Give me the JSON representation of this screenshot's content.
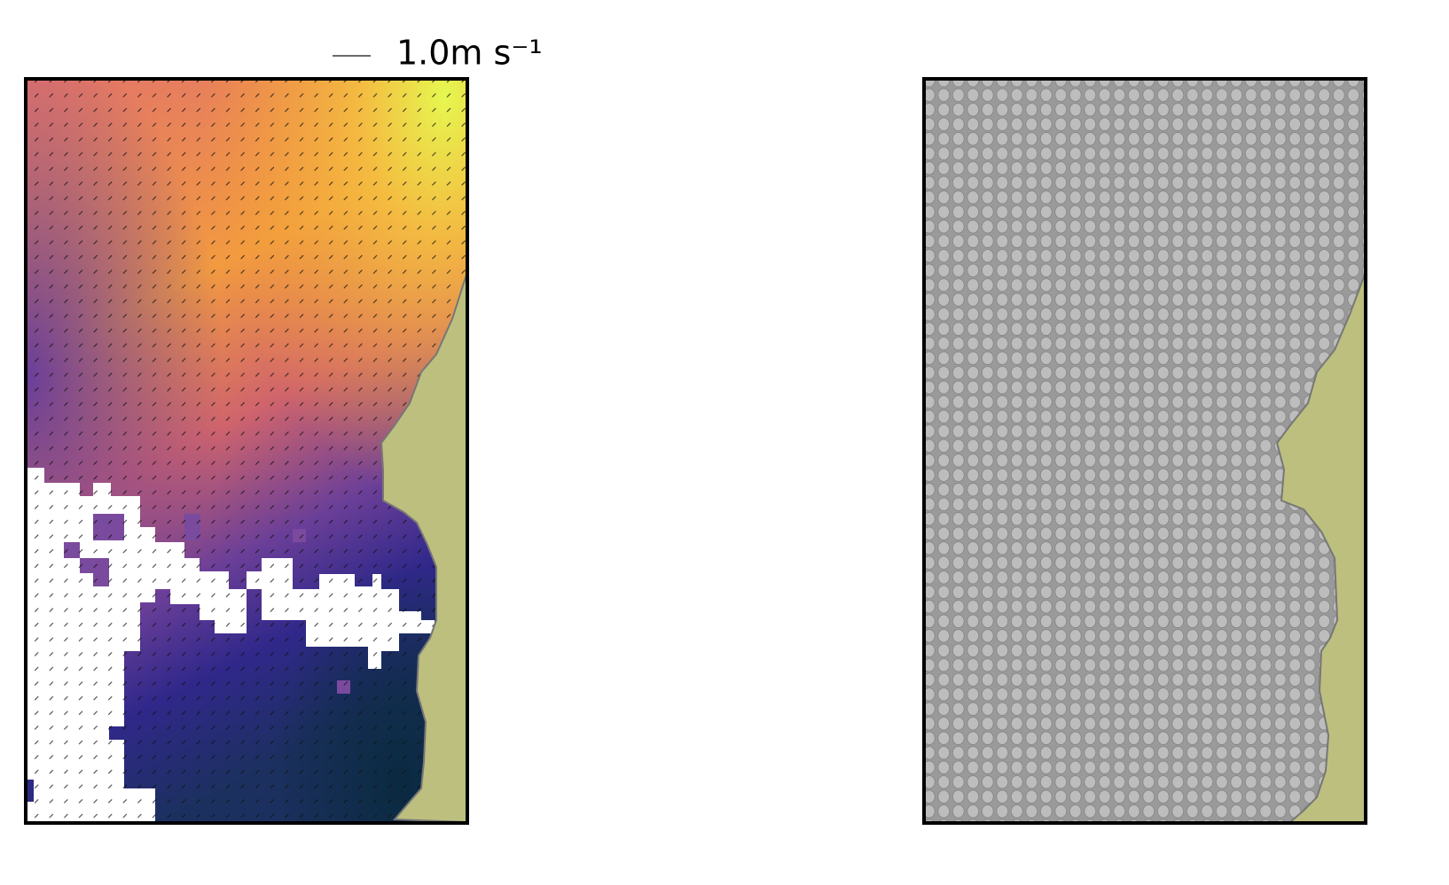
{
  "chart_data": {
    "type": "quiver",
    "key_value": 1.0,
    "key_label": "1.0m s⁻¹"
  }
}
